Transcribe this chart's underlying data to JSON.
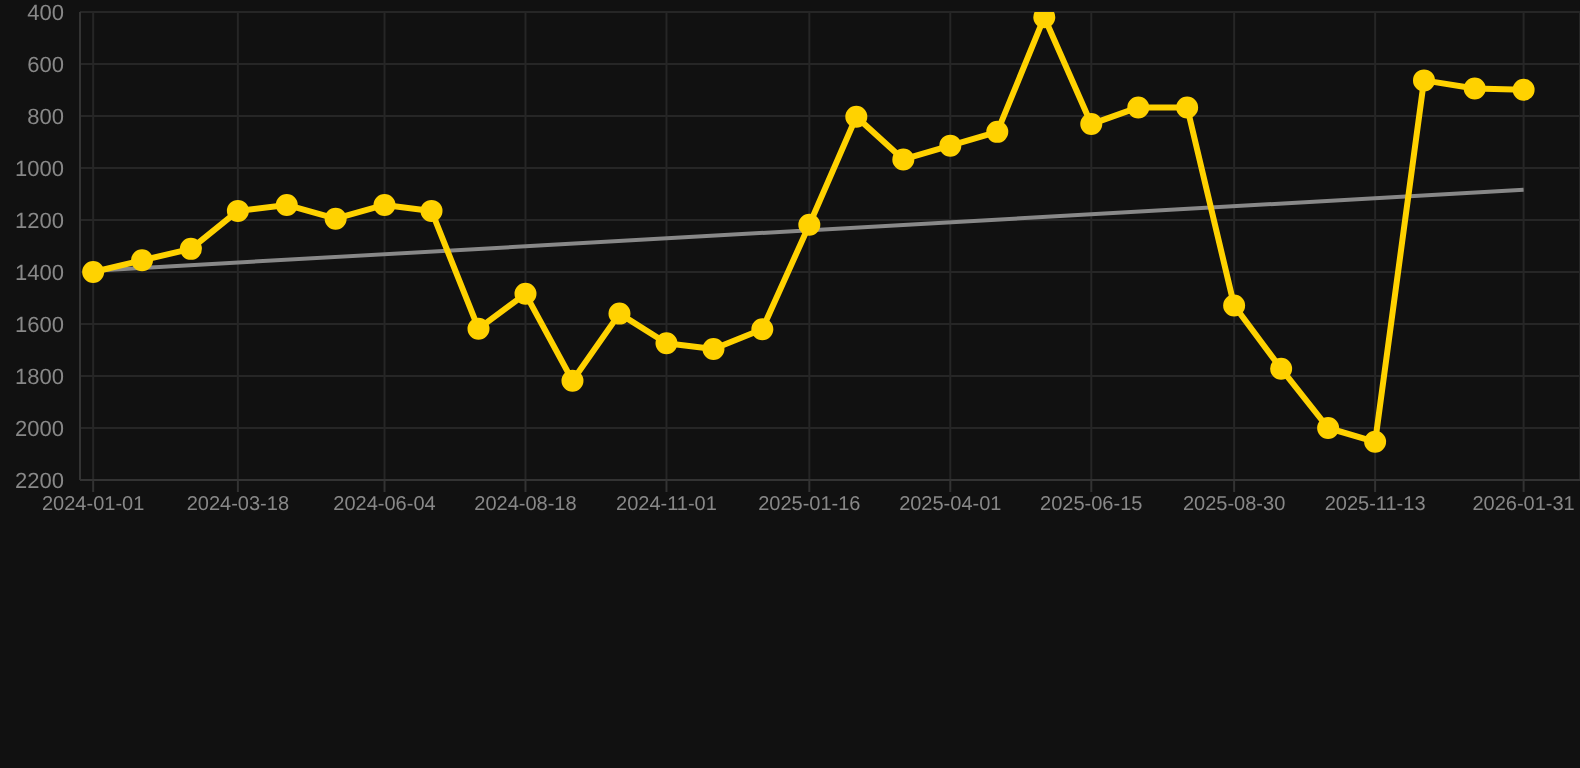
{
  "chart_data": {
    "type": "line",
    "x": [
      "2024-01-01",
      "2024-01-27",
      "2024-02-22",
      "2024-03-18",
      "2024-04-13",
      "2024-05-09",
      "2024-06-04",
      "2024-06-29",
      "2024-07-24",
      "2024-08-18",
      "2024-09-12",
      "2024-10-07",
      "2024-11-01",
      "2024-11-26",
      "2024-12-22",
      "2025-01-16",
      "2025-02-10",
      "2025-03-07",
      "2025-04-01",
      "2025-04-26",
      "2025-05-21",
      "2025-06-15",
      "2025-07-10",
      "2025-08-05",
      "2025-08-30",
      "2025-09-24",
      "2025-10-19",
      "2025-11-13",
      "2025-12-09",
      "2026-01-05",
      "2026-01-31"
    ],
    "series": [
      {
        "color": "#ffd200",
        "marker": "circle",
        "values": [
          1400,
          1355,
          1311,
          1165,
          1142,
          1195,
          1142,
          1165,
          1618,
          1484,
          1818,
          1560,
          1674,
          1696,
          1620,
          1218,
          803,
          967,
          914,
          861,
          420,
          831,
          767,
          767,
          1529,
          1772,
          2000,
          2053,
          663,
          694,
          699
        ]
      },
      {
        "type": "line",
        "color": "#888888",
        "marker": "none",
        "x": [
          "2024-01-01",
          "2026-01-31"
        ],
        "values": [
          1395,
          1084
        ]
      }
    ],
    "xlim": [
      "2023-12-25",
      "2026-03-02"
    ],
    "xticks": [
      "2024-01-01",
      "2024-03-18",
      "2024-06-04",
      "2024-08-18",
      "2024-11-01",
      "2025-01-16",
      "2025-04-01",
      "2025-06-15",
      "2025-08-30",
      "2025-11-13",
      "2026-01-31"
    ],
    "ylim": [
      2200,
      400
    ],
    "yticks": [
      400,
      600,
      800,
      1000,
      1200,
      1400,
      1600,
      1800,
      2000,
      2200
    ],
    "grid": true
  }
}
